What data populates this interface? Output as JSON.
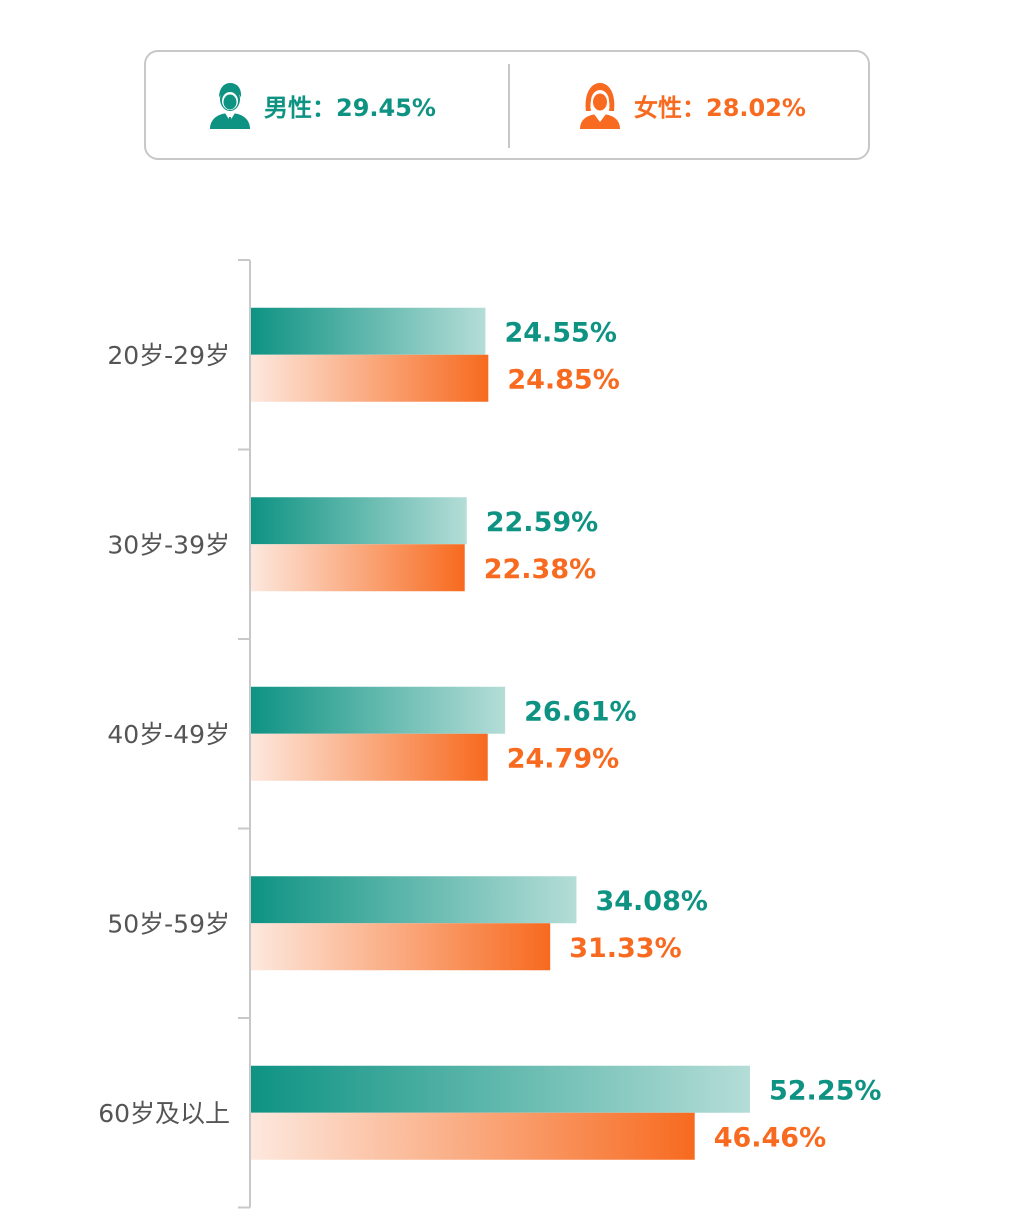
{
  "legend": {
    "male": {
      "text": "男性：29.45%",
      "icon": "male-person-icon"
    },
    "female": {
      "text": "女性：28.02%",
      "icon": "female-person-icon"
    }
  },
  "colors": {
    "male": "#0e9383",
    "male_light": "#b4ddd7",
    "female": "#f76a1f",
    "female_light": "#fde8de",
    "axis": "#c8c8c8",
    "category_text": "#555555"
  },
  "chart_data": {
    "type": "bar",
    "orientation": "horizontal",
    "categories": [
      "20岁-29岁",
      "30岁-39岁",
      "40岁-49岁",
      "50岁-59岁",
      "60岁及以上"
    ],
    "series": [
      {
        "name": "男性",
        "values": [
          24.55,
          22.59,
          26.61,
          34.08,
          52.25
        ],
        "labels": [
          "24.55%",
          "22.59%",
          "26.61%",
          "34.08%",
          "52.25%"
        ]
      },
      {
        "name": "女性",
        "values": [
          24.85,
          22.38,
          24.79,
          31.33,
          46.46
        ],
        "labels": [
          "24.85%",
          "22.38%",
          "24.79%",
          "31.33%",
          "46.46%"
        ]
      }
    ],
    "xlim": [
      0,
      60
    ],
    "grid": false
  }
}
